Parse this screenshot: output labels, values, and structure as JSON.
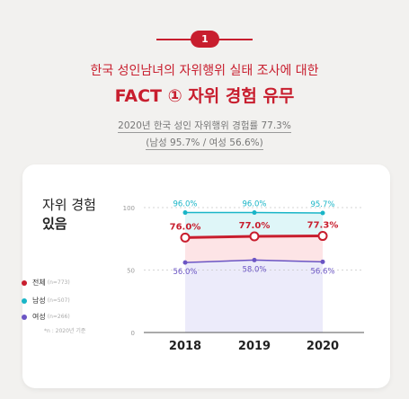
{
  "header": {
    "badge": "1",
    "subtitle": "한국 성인남녀의 자위행위 실태 조사에 대한",
    "title": "FACT ① 자위 경험 유무",
    "stat_main": "2020년 한국 성인 자위행위 경험률 77.3%",
    "stat_gender": "(남성 95.7% / 여성 56.6%)"
  },
  "card": {
    "title_line1": "자위 경험",
    "title_line2": "있음",
    "footnote": "*n : 2020년 기준"
  },
  "legend": [
    {
      "label": "전체",
      "n": "(n=773)",
      "color": "#c81e2e"
    },
    {
      "label": "남성",
      "n": "(n=507)",
      "color": "#19b5c7"
    },
    {
      "label": "여성",
      "n": "(n=266)",
      "color": "#6b55c4"
    }
  ],
  "chart_data": {
    "type": "line",
    "x": [
      "2018",
      "2019",
      "2020"
    ],
    "ylim": [
      0,
      100
    ],
    "yticks": [
      "0",
      "50",
      "100"
    ],
    "series": [
      {
        "name": "남성",
        "values": [
          96.0,
          96.0,
          95.7
        ],
        "labels": [
          "96.0%",
          "96.0%",
          "95.7%"
        ],
        "color": "#19b5c7"
      },
      {
        "name": "전체",
        "values": [
          76.0,
          77.0,
          77.3
        ],
        "labels": [
          "76.0%",
          "77.0%",
          "77.3%"
        ],
        "color": "#c81e2e"
      },
      {
        "name": "여성",
        "values": [
          56.0,
          58.0,
          56.6
        ],
        "labels": [
          "56.0%",
          "58.0%",
          "56.6%"
        ],
        "color": "#6b55c4"
      }
    ]
  }
}
